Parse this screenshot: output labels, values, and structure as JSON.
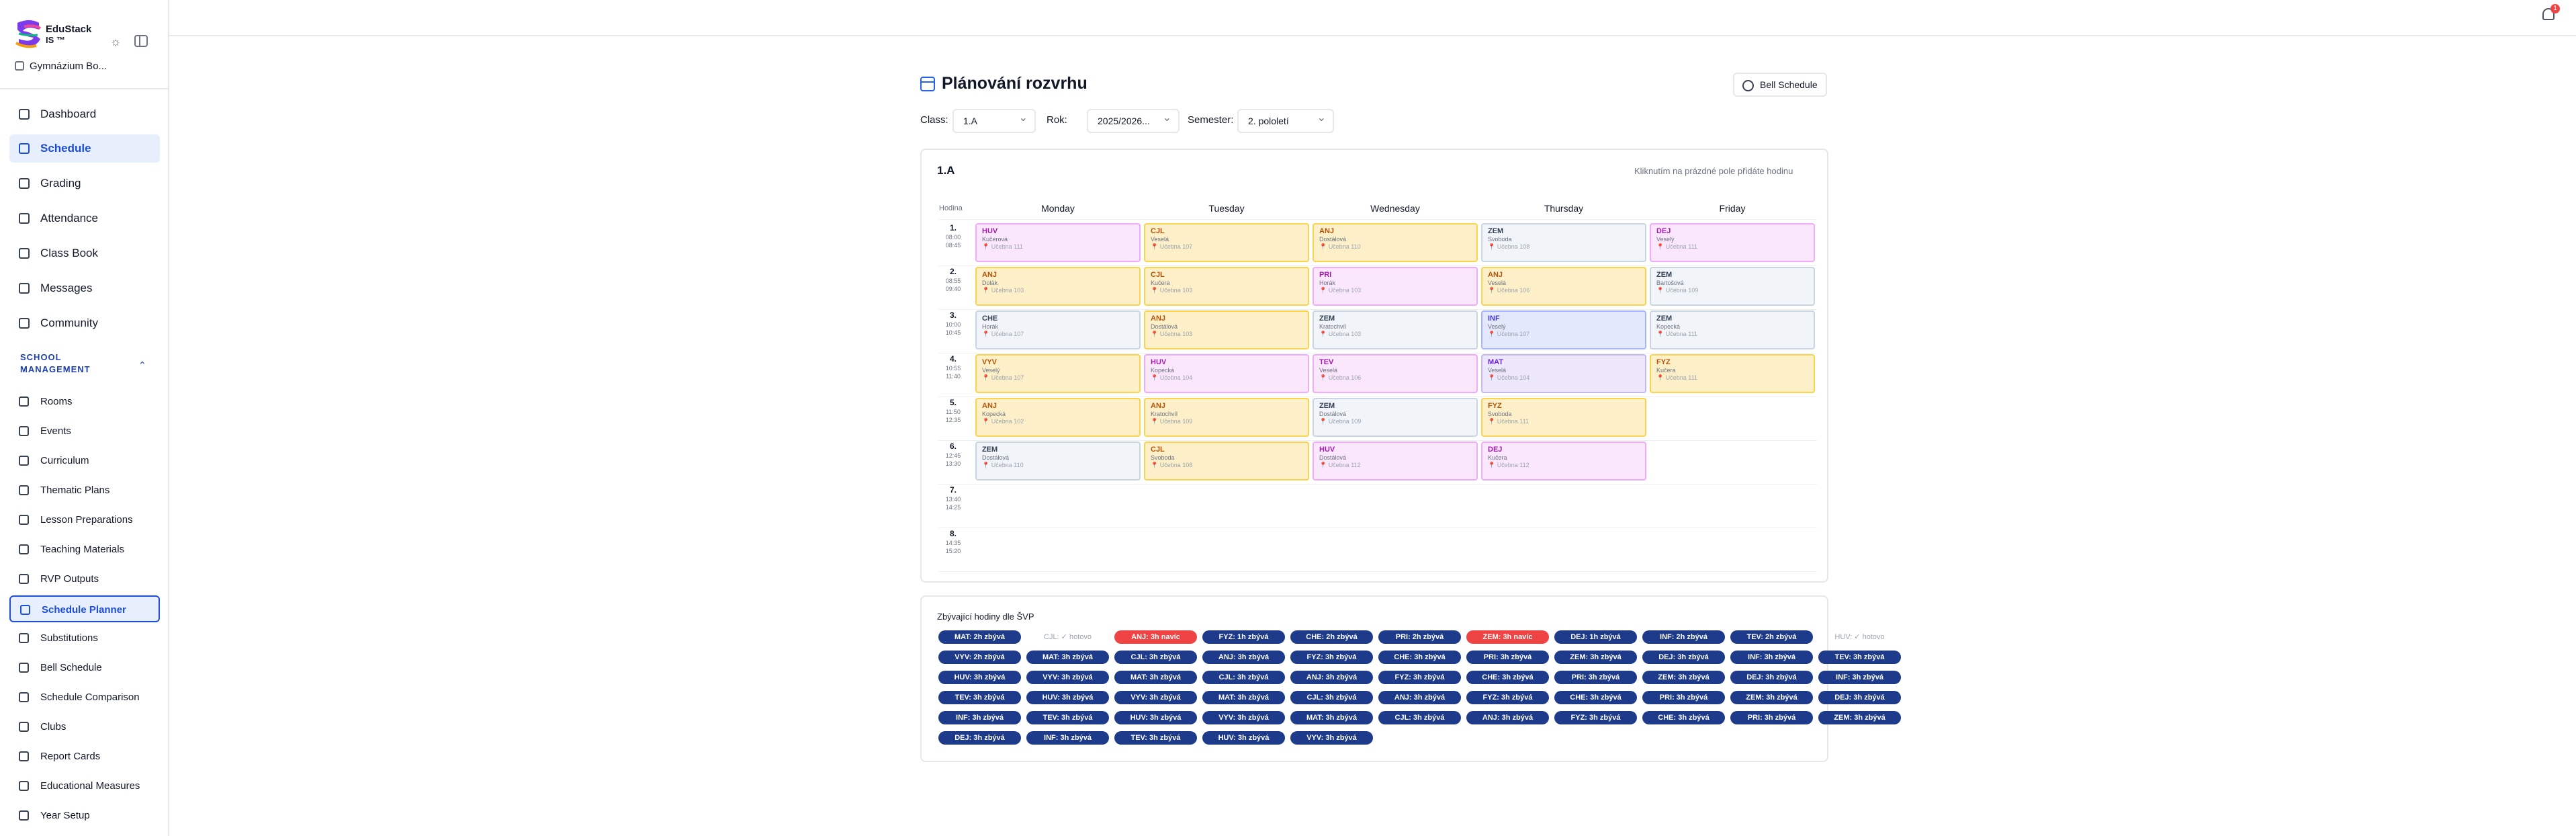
{
  "sidebar": {
    "brand_line1": "EduStack",
    "brand_line2": "IS ™",
    "school": "Gymnázium Bo...",
    "section": "SCHOOL MANAGEMENT",
    "main": [
      {
        "label": "Dashboard",
        "icon": "dashboard-icon"
      },
      {
        "label": "Schedule",
        "icon": "calendar-icon",
        "active": true
      },
      {
        "label": "Grading",
        "icon": "graduation-cap-icon"
      },
      {
        "label": "Attendance",
        "icon": "clipboard-icon"
      },
      {
        "label": "Class Book",
        "icon": "book-icon"
      },
      {
        "label": "Messages",
        "icon": "message-icon"
      },
      {
        "label": "Community",
        "icon": "chat-icon"
      }
    ],
    "sub": [
      {
        "label": "Rooms",
        "icon": "building-icon"
      },
      {
        "label": "Events",
        "icon": "calendar-event-icon"
      },
      {
        "label": "Curriculum",
        "icon": "book-open-icon"
      },
      {
        "label": "Thematic Plans",
        "icon": "file-text-icon"
      },
      {
        "label": "Lesson Preparations",
        "icon": "file-edit-icon"
      },
      {
        "label": "Teaching Materials",
        "icon": "folder-icon"
      },
      {
        "label": "RVP Outputs",
        "icon": "target-icon"
      },
      {
        "label": "Schedule Planner",
        "icon": "calendar-grid-icon",
        "active": true
      },
      {
        "label": "Substitutions",
        "icon": "swap-icon"
      },
      {
        "label": "Bell Schedule",
        "icon": "clock-icon"
      },
      {
        "label": "Schedule Comparison",
        "icon": "compare-icon"
      },
      {
        "label": "Clubs",
        "icon": "users-icon"
      },
      {
        "label": "Report Cards",
        "icon": "award-icon"
      },
      {
        "label": "Educational Measures",
        "icon": "scale-icon"
      },
      {
        "label": "Year Setup",
        "icon": "gear-icon"
      }
    ]
  },
  "topbar": {
    "notifications": "1"
  },
  "page": {
    "title": "Plánování rozvrhu",
    "bell_button": "Bell Schedule",
    "filters": {
      "class_label": "Class:",
      "class_value": "1.A",
      "year_label": "Rok:",
      "year_value": "2025/2026...",
      "semester_label": "Semester:",
      "semester_value": "2. pololetí"
    },
    "grid_title": "1.A",
    "hint": "Kliknutím na prázdné pole přidáte hodinu",
    "hour_header": "Hodina",
    "days": [
      "Monday",
      "Tuesday",
      "Wednesday",
      "Thursday",
      "Friday"
    ]
  },
  "periods": [
    {
      "num": "1.",
      "start": "08:00",
      "end": "08:45"
    },
    {
      "num": "2.",
      "start": "08:55",
      "end": "09:40"
    },
    {
      "num": "3.",
      "start": "10:00",
      "end": "10:45"
    },
    {
      "num": "4.",
      "start": "10:55",
      "end": "11:40"
    },
    {
      "num": "5.",
      "start": "11:50",
      "end": "12:35"
    },
    {
      "num": "6.",
      "start": "12:45",
      "end": "13:30"
    },
    {
      "num": "7.",
      "start": "13:40",
      "end": "14:25"
    },
    {
      "num": "8.",
      "start": "14:35",
      "end": "15:20"
    }
  ],
  "lessons": [
    {
      "period": 0,
      "day": 0,
      "subject": "HUV",
      "teacher": "Kučerová",
      "room": "📍 Učebna 111",
      "color": "#fbe7fb"
    },
    {
      "period": 0,
      "day": 1,
      "subject": "CJL",
      "teacher": "Veselá",
      "room": "📍 Učebna 107",
      "color": "#fdf0c8"
    },
    {
      "period": 0,
      "day": 2,
      "subject": "ANJ",
      "teacher": "Dostálová",
      "room": "📍 Učebna 110",
      "color": "#fdf0c8"
    },
    {
      "period": 0,
      "day": 3,
      "subject": "ZEM",
      "teacher": "Svoboda",
      "room": "📍 Učebna 108",
      "color": "#f1f4f8"
    },
    {
      "period": 0,
      "day": 4,
      "subject": "DEJ",
      "teacher": "Veselý",
      "room": "📍 Učebna 111",
      "color": "#fbe7fb"
    },
    {
      "period": 1,
      "day": 0,
      "subject": "ANJ",
      "teacher": "Dolák",
      "room": "📍 Učebna 103",
      "color": "#fdf0c8"
    },
    {
      "period": 1,
      "day": 1,
      "subject": "CJL",
      "teacher": "Kučera",
      "room": "📍 Učebna 103",
      "color": "#fdf0c8"
    },
    {
      "period": 1,
      "day": 2,
      "subject": "PRI",
      "teacher": "Horák",
      "room": "📍 Učebna 103",
      "color": "#fbe7fb"
    },
    {
      "period": 1,
      "day": 3,
      "subject": "ANJ",
      "teacher": "Veselá",
      "room": "📍 Učebna 106",
      "color": "#fdf0c8"
    },
    {
      "period": 1,
      "day": 4,
      "subject": "ZEM",
      "teacher": "Bartošová",
      "room": "📍 Učebna 109",
      "color": "#f1f4f8"
    },
    {
      "period": 2,
      "day": 0,
      "subject": "CHE",
      "teacher": "Horák",
      "room": "📍 Učebna 107",
      "color": "#f1f4f8"
    },
    {
      "period": 2,
      "day": 1,
      "subject": "ANJ",
      "teacher": "Dostálová",
      "room": "📍 Učebna 103",
      "color": "#fdf0c8"
    },
    {
      "period": 2,
      "day": 2,
      "subject": "ZEM",
      "teacher": "Kratochvíl",
      "room": "📍 Učebna 103",
      "color": "#f1f4f8"
    },
    {
      "period": 2,
      "day": 3,
      "subject": "INF",
      "teacher": "Veselý",
      "room": "📍 Učebna 107",
      "color": "#e4e8fb"
    },
    {
      "period": 2,
      "day": 4,
      "subject": "ZEM",
      "teacher": "Kopecká",
      "room": "📍 Učebna 111",
      "color": "#f1f4f8"
    },
    {
      "period": 3,
      "day": 0,
      "subject": "VYV",
      "teacher": "Veselý",
      "room": "📍 Učebna 107",
      "color": "#fdf0c8"
    },
    {
      "period": 3,
      "day": 1,
      "subject": "HUV",
      "teacher": "Kopecká",
      "room": "📍 Učebna 104",
      "color": "#fbe7fb"
    },
    {
      "period": 3,
      "day": 2,
      "subject": "TEV",
      "teacher": "Veselá",
      "room": "📍 Učebna 106",
      "color": "#fbe7fb"
    },
    {
      "period": 3,
      "day": 3,
      "subject": "MAT",
      "teacher": "Veselá",
      "room": "📍 Učebna 104",
      "color": "#ece7fb"
    },
    {
      "period": 3,
      "day": 4,
      "subject": "FYZ",
      "teacher": "Kučera",
      "room": "📍 Učebna 111",
      "color": "#fdf0c8"
    },
    {
      "period": 4,
      "day": 0,
      "subject": "ANJ",
      "teacher": "Kopecká",
      "room": "📍 Učebna 102",
      "color": "#fdf0c8"
    },
    {
      "period": 4,
      "day": 1,
      "subject": "ANJ",
      "teacher": "Kratochvíl",
      "room": "📍 Učebna 109",
      "color": "#fdf0c8"
    },
    {
      "period": 4,
      "day": 2,
      "subject": "ZEM",
      "teacher": "Dostálová",
      "room": "📍 Učebna 109",
      "color": "#f1f4f8"
    },
    {
      "period": 4,
      "day": 3,
      "subject": "FYZ",
      "teacher": "Svoboda",
      "room": "📍 Učebna 111",
      "color": "#fdf0c8"
    },
    {
      "period": 5,
      "day": 0,
      "subject": "ZEM",
      "teacher": "Dostálová",
      "room": "📍 Učebna 110",
      "color": "#f1f4f8"
    },
    {
      "period": 5,
      "day": 1,
      "subject": "CJL",
      "teacher": "Svoboda",
      "room": "📍 Učebna 108",
      "color": "#fdf0c8"
    },
    {
      "period": 5,
      "day": 2,
      "subject": "HUV",
      "teacher": "Dostálová",
      "room": "📍 Učebna 112",
      "color": "#fbe7fb"
    },
    {
      "period": 5,
      "day": 3,
      "subject": "DEJ",
      "teacher": "Kučera",
      "room": "📍 Učebna 112",
      "color": "#fbe7fb"
    }
  ],
  "missing": {
    "title": "Zbývající hodiny dle ŠVP",
    "rows": [
      [
        {
          "t": "MAT: 2h zbývá",
          "s": "blue"
        },
        {
          "t": "CJL: ✓ hotovo",
          "s": "done"
        },
        {
          "t": "ANJ: 3h navíc",
          "s": "red"
        },
        {
          "t": "FYZ: 1h zbývá",
          "s": "blue"
        },
        {
          "t": "CHE: 2h zbývá",
          "s": "blue"
        },
        {
          "t": "PRI: 2h zbývá",
          "s": "blue"
        },
        {
          "t": "ZEM: 3h navíc",
          "s": "red"
        },
        {
          "t": "DEJ: 1h zbývá",
          "s": "blue"
        },
        {
          "t": "INF: 2h zbývá",
          "s": "blue"
        },
        {
          "t": "TEV: 2h zbývá",
          "s": "blue"
        },
        {
          "t": "HUV: ✓ hotovo",
          "s": "done"
        }
      ],
      [
        {
          "t": "VYV: 2h zbývá",
          "s": "blue"
        },
        {
          "t": "MAT: 3h zbývá",
          "s": "blue"
        },
        {
          "t": "CJL: 3h zbývá",
          "s": "blue"
        },
        {
          "t": "ANJ: 3h zbývá",
          "s": "blue"
        },
        {
          "t": "FYZ: 3h zbývá",
          "s": "blue"
        },
        {
          "t": "CHE: 3h zbývá",
          "s": "blue"
        },
        {
          "t": "PRI: 3h zbývá",
          "s": "blue"
        },
        {
          "t": "ZEM: 3h zbývá",
          "s": "blue"
        },
        {
          "t": "DEJ: 3h zbývá",
          "s": "blue"
        },
        {
          "t": "INF: 3h zbývá",
          "s": "blue"
        },
        {
          "t": "TEV: 3h zbývá",
          "s": "blue"
        }
      ],
      [
        {
          "t": "HUV: 3h zbývá",
          "s": "blue"
        },
        {
          "t": "VYV: 3h zbývá",
          "s": "blue"
        },
        {
          "t": "MAT: 3h zbývá",
          "s": "blue"
        },
        {
          "t": "CJL: 3h zbývá",
          "s": "blue"
        },
        {
          "t": "ANJ: 3h zbývá",
          "s": "blue"
        },
        {
          "t": "FYZ: 3h zbývá",
          "s": "blue"
        },
        {
          "t": "CHE: 3h zbývá",
          "s": "blue"
        },
        {
          "t": "PRI: 3h zbývá",
          "s": "blue"
        },
        {
          "t": "ZEM: 3h zbývá",
          "s": "blue"
        },
        {
          "t": "DEJ: 3h zbývá",
          "s": "blue"
        },
        {
          "t": "INF: 3h zbývá",
          "s": "blue"
        }
      ],
      [
        {
          "t": "TEV: 3h zbývá",
          "s": "blue"
        },
        {
          "t": "HUV: 3h zbývá",
          "s": "blue"
        },
        {
          "t": "VYV: 3h zbývá",
          "s": "blue"
        },
        {
          "t": "MAT: 3h zbývá",
          "s": "blue"
        },
        {
          "t": "CJL: 3h zbývá",
          "s": "blue"
        },
        {
          "t": "ANJ: 3h zbývá",
          "s": "blue"
        },
        {
          "t": "FYZ: 3h zbývá",
          "s": "blue"
        },
        {
          "t": "CHE: 3h zbývá",
          "s": "blue"
        },
        {
          "t": "PRI: 3h zbývá",
          "s": "blue"
        },
        {
          "t": "ZEM: 3h zbývá",
          "s": "blue"
        },
        {
          "t": "DEJ: 3h zbývá",
          "s": "blue"
        }
      ],
      [
        {
          "t": "INF: 3h zbývá",
          "s": "blue"
        },
        {
          "t": "TEV: 3h zbývá",
          "s": "blue"
        },
        {
          "t": "HUV: 3h zbývá",
          "s": "blue"
        },
        {
          "t": "VYV: 3h zbývá",
          "s": "blue"
        },
        {
          "t": "MAT: 3h zbývá",
          "s": "blue"
        },
        {
          "t": "CJL: 3h zbývá",
          "s": "blue"
        },
        {
          "t": "ANJ: 3h zbývá",
          "s": "blue"
        },
        {
          "t": "FYZ: 3h zbývá",
          "s": "blue"
        },
        {
          "t": "CHE: 3h zbývá",
          "s": "blue"
        },
        {
          "t": "PRI: 3h zbývá",
          "s": "blue"
        },
        {
          "t": "ZEM: 3h zbývá",
          "s": "blue"
        }
      ],
      [
        {
          "t": "DEJ: 3h zbývá",
          "s": "blue"
        },
        {
          "t": "INF: 3h zbývá",
          "s": "blue"
        },
        {
          "t": "TEV: 3h zbývá",
          "s": "blue"
        },
        {
          "t": "HUV: 3h zbývá",
          "s": "blue"
        },
        {
          "t": "VYV: 3h zbývá",
          "s": "blue"
        }
      ]
    ]
  },
  "colors": {
    "accent": "#1d4ed8",
    "chip_blue": "#1e3a8a",
    "chip_red": "#ef4444",
    "done_text": "#9ca3af"
  }
}
